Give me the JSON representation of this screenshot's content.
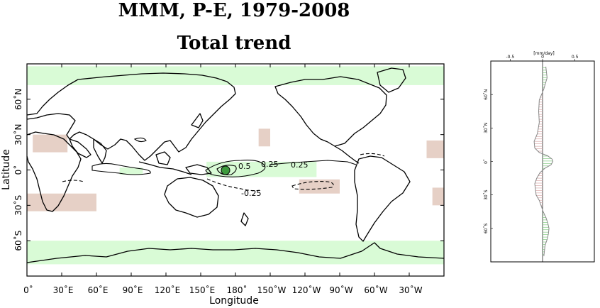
{
  "title": "MMM, P-E, 1979-2008",
  "subtitle": "Total trend",
  "colors": {
    "wet": "#d9fbd6",
    "dry": "#e6d0c6",
    "peak": "#3d9a3d",
    "line": "#000000",
    "frame": "#000000"
  },
  "chart_data": [
    {
      "type": "heatmap",
      "title": "MMM, P-E, 1979-2008",
      "subtitle": "Total trend",
      "xlabel": "Longitude",
      "ylabel": "Latitude",
      "x_ticks": [
        "0˚",
        "30˚E",
        "60˚E",
        "90˚E",
        "120˚E",
        "150˚E",
        "180˚",
        "150˚W",
        "120˚W",
        "90˚W",
        "60˚W",
        "30˚W"
      ],
      "y_ticks": [
        "60˚N",
        "30˚N",
        "0˚",
        "30˚S",
        "60˚S"
      ],
      "x_range": [
        0,
        360
      ],
      "y_range": [
        -90,
        90
      ],
      "grid": false,
      "contour_labels": [
        {
          "text": "0.5",
          "lon": 178,
          "lat": 0
        },
        {
          "text": "0.25",
          "lon": 196,
          "lat": 2
        },
        {
          "text": "0.25",
          "lon": 232,
          "lat": 2
        },
        {
          "text": "-0.25",
          "lon": 196,
          "lat": -19
        }
      ],
      "wet_regions": [
        {
          "lon": [
            0,
            360
          ],
          "lat": [
            -80,
            -60
          ]
        },
        {
          "lon": [
            0,
            360
          ],
          "lat": [
            72,
            88
          ]
        },
        {
          "lon": [
            155,
            250
          ],
          "lat": [
            -6,
            7
          ]
        },
        {
          "lon": [
            80,
            100
          ],
          "lat": [
            -4,
            2
          ]
        }
      ],
      "dry_regions": [
        {
          "lon": [
            5,
            35
          ],
          "lat": [
            15,
            30
          ]
        },
        {
          "lon": [
            345,
            360
          ],
          "lat": [
            10,
            25
          ]
        },
        {
          "lon": [
            350,
            360
          ],
          "lat": [
            -30,
            -15
          ]
        },
        {
          "lon": [
            200,
            210
          ],
          "lat": [
            20,
            35
          ]
        },
        {
          "lon": [
            235,
            270
          ],
          "lat": [
            -20,
            -8
          ]
        },
        {
          "lon": [
            0,
            60
          ],
          "lat": [
            -35,
            -20
          ]
        }
      ]
    },
    {
      "type": "area",
      "xlabel": "[mm/day]",
      "x_ticks": [
        "-0.5",
        "0",
        "0.5"
      ],
      "y_ticks": [
        "60˚N",
        "30˚N",
        "0˚",
        "30˚S",
        "60˚S"
      ],
      "xlim": [
        -0.8,
        0.8
      ],
      "ylim": [
        -90,
        90
      ],
      "lat": [
        85,
        75,
        65,
        55,
        45,
        35,
        25,
        18,
        12,
        8,
        5,
        2,
        0,
        -3,
        -6,
        -10,
        -15,
        -20,
        -25,
        -30,
        -35,
        -40,
        -45,
        -50,
        -55,
        -60,
        -65,
        -70,
        -75,
        -80,
        -85
      ],
      "value": [
        0.05,
        0.07,
        0.02,
        -0.05,
        -0.06,
        -0.05,
        -0.08,
        -0.13,
        -0.12,
        -0.05,
        0.08,
        0.15,
        0.16,
        0.13,
        0.04,
        -0.04,
        -0.09,
        -0.12,
        -0.11,
        -0.1,
        -0.05,
        -0.02,
        0.01,
        0.05,
        0.08,
        0.1,
        0.09,
        0.07,
        0.04,
        0.03,
        0.02
      ]
    }
  ]
}
